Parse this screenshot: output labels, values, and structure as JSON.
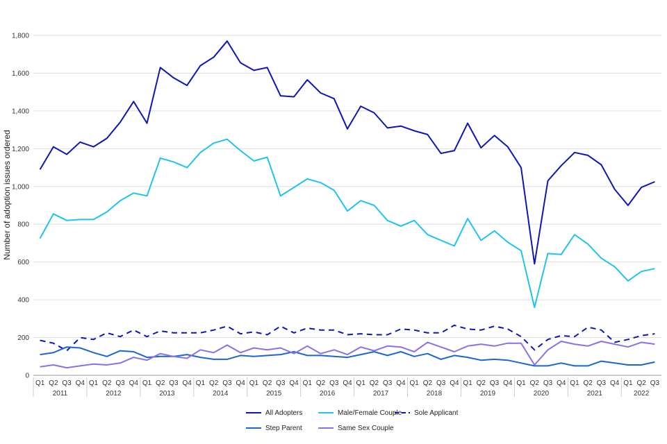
{
  "chart_data": {
    "type": "line",
    "title": "",
    "ylabel": "Number of adoption issues ordered",
    "xlabel": "",
    "ylim": [
      0,
      1800
    ],
    "yticks": [
      0,
      200,
      400,
      600,
      800,
      1000,
      1200,
      1400,
      1600,
      1800
    ],
    "ytick_labels": [
      "0",
      "200",
      "400",
      "600",
      "800",
      "1,000",
      "1,200",
      "1,400",
      "1,600",
      "1,800"
    ],
    "grid": true,
    "legend_position": "bottom",
    "quarters": [
      "Q1",
      "Q2",
      "Q3",
      "Q4",
      "Q1",
      "Q2",
      "Q3",
      "Q4",
      "Q1",
      "Q2",
      "Q3",
      "Q4",
      "Q1",
      "Q2",
      "Q3",
      "Q4",
      "Q1",
      "Q2",
      "Q3",
      "Q4",
      "Q1",
      "Q2",
      "Q3",
      "Q4",
      "Q1",
      "Q2",
      "Q3",
      "Q4",
      "Q1",
      "Q2",
      "Q3",
      "Q4",
      "Q1",
      "Q2",
      "Q3",
      "Q4",
      "Q1",
      "Q2",
      "Q3",
      "Q4",
      "Q1",
      "Q2",
      "Q3",
      "Q4",
      "Q1",
      "Q2",
      "Q3"
    ],
    "years": [
      {
        "label": "2011",
        "start": 0,
        "count": 4
      },
      {
        "label": "2012",
        "start": 4,
        "count": 4
      },
      {
        "label": "2013",
        "start": 8,
        "count": 4
      },
      {
        "label": "2014",
        "start": 12,
        "count": 4
      },
      {
        "label": "2015",
        "start": 16,
        "count": 4
      },
      {
        "label": "2016",
        "start": 20,
        "count": 4
      },
      {
        "label": "2017",
        "start": 24,
        "count": 4
      },
      {
        "label": "2018",
        "start": 28,
        "count": 4
      },
      {
        "label": "2019",
        "start": 32,
        "count": 4
      },
      {
        "label": "2020",
        "start": 36,
        "count": 4
      },
      {
        "label": "2021",
        "start": 40,
        "count": 4
      },
      {
        "label": "2022",
        "start": 44,
        "count": 3
      }
    ],
    "series": [
      {
        "name": "All Adopters",
        "color": "#0b16b8",
        "dash": false,
        "values": [
          1090,
          1210,
          1170,
          1235,
          1210,
          1255,
          1340,
          1450,
          1335,
          1630,
          1575,
          1535,
          1640,
          1685,
          1770,
          1655,
          1615,
          1630,
          1480,
          1475,
          1565,
          1495,
          1465,
          1305,
          1425,
          1390,
          1310,
          1320,
          1295,
          1275,
          1175,
          1190,
          1335,
          1205,
          1270,
          1210,
          1100,
          590,
          1030,
          1110,
          1180,
          1165,
          1115,
          985,
          900,
          995,
          1025
        ]
      },
      {
        "name": "Male/Female Couple",
        "color": "#1ec3ef",
        "dash": false,
        "values": [
          725,
          855,
          820,
          825,
          825,
          865,
          925,
          965,
          950,
          1150,
          1130,
          1100,
          1180,
          1230,
          1250,
          1190,
          1135,
          1155,
          950,
          995,
          1040,
          1020,
          980,
          870,
          925,
          900,
          820,
          790,
          820,
          745,
          715,
          685,
          830,
          715,
          765,
          705,
          660,
          360,
          645,
          640,
          745,
          695,
          620,
          575,
          500,
          550,
          565
        ]
      },
      {
        "name": "Sole Applicant",
        "color": "#0b16b8",
        "dash": true,
        "values": [
          185,
          170,
          130,
          200,
          190,
          225,
          205,
          240,
          205,
          235,
          225,
          225,
          225,
          240,
          260,
          220,
          230,
          215,
          260,
          225,
          250,
          240,
          240,
          215,
          220,
          215,
          215,
          245,
          240,
          225,
          225,
          265,
          245,
          240,
          260,
          245,
          205,
          135,
          190,
          210,
          205,
          255,
          240,
          175,
          190,
          210,
          220
        ]
      },
      {
        "name": "Step Parent",
        "color": "#1a66d1",
        "dash": false,
        "values": [
          110,
          120,
          150,
          145,
          120,
          100,
          130,
          125,
          95,
          100,
          100,
          110,
          95,
          85,
          85,
          105,
          100,
          105,
          110,
          125,
          105,
          105,
          100,
          95,
          110,
          125,
          105,
          125,
          100,
          115,
          85,
          105,
          95,
          80,
          85,
          80,
          65,
          50,
          50,
          65,
          50,
          50,
          75,
          65,
          55,
          55,
          70
        ]
      },
      {
        "name": "Same Sex Couple",
        "color": "#8b6fea",
        "dash": false,
        "values": [
          45,
          55,
          40,
          50,
          60,
          55,
          65,
          95,
          80,
          115,
          100,
          90,
          135,
          120,
          160,
          120,
          145,
          135,
          145,
          115,
          155,
          115,
          135,
          110,
          150,
          130,
          155,
          150,
          125,
          175,
          150,
          125,
          155,
          165,
          155,
          170,
          170,
          55,
          135,
          180,
          165,
          155,
          180,
          165,
          150,
          175,
          165
        ]
      }
    ],
    "legend": {
      "row1": [
        "All Adopters",
        "Male/Female Couple",
        "Sole Applicant"
      ],
      "row2": [
        "Step Parent",
        "Same Sex Couple"
      ]
    }
  }
}
